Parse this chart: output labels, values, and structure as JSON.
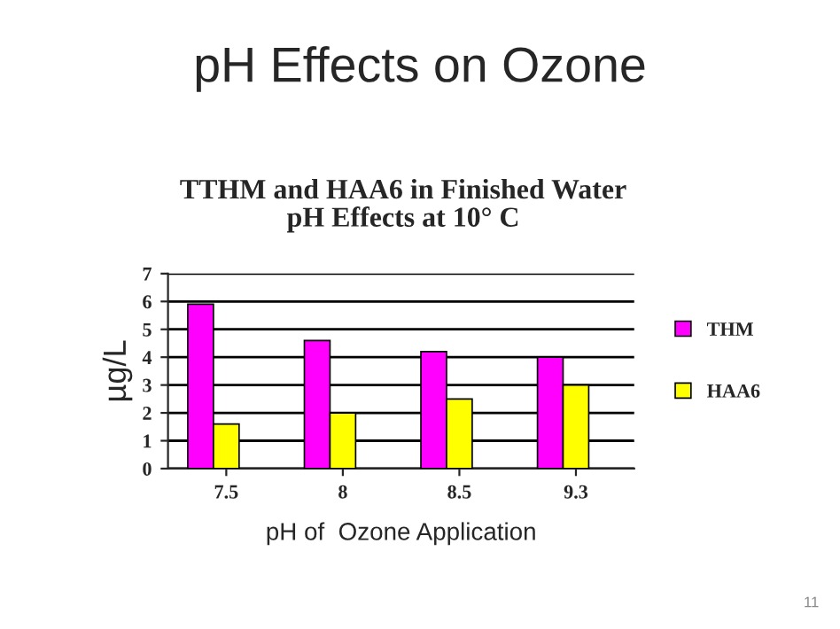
{
  "chart_data": {
    "type": "bar",
    "title": "pH Effects on Ozone",
    "subtitle": "TTHM and HAA6 in Finished Water\npH Effects at 10° C",
    "xlabel": "pH of  Ozone Application",
    "ylabel": "µg/L",
    "categories": [
      "7.5",
      "8",
      "8.5",
      "9.3"
    ],
    "series": [
      {
        "name": "THM",
        "color": "#ff00ff",
        "values": [
          5.9,
          4.6,
          4.2,
          4.0
        ]
      },
      {
        "name": "HAA6",
        "color": "#ffff00",
        "values": [
          1.6,
          2.0,
          2.5,
          3.0
        ]
      }
    ],
    "ylim": [
      0,
      7
    ],
    "yticks": [
      0,
      1,
      2,
      3,
      4,
      5,
      6,
      7
    ],
    "grid": "y",
    "legend": "right",
    "annotations": [
      "11"
    ]
  }
}
